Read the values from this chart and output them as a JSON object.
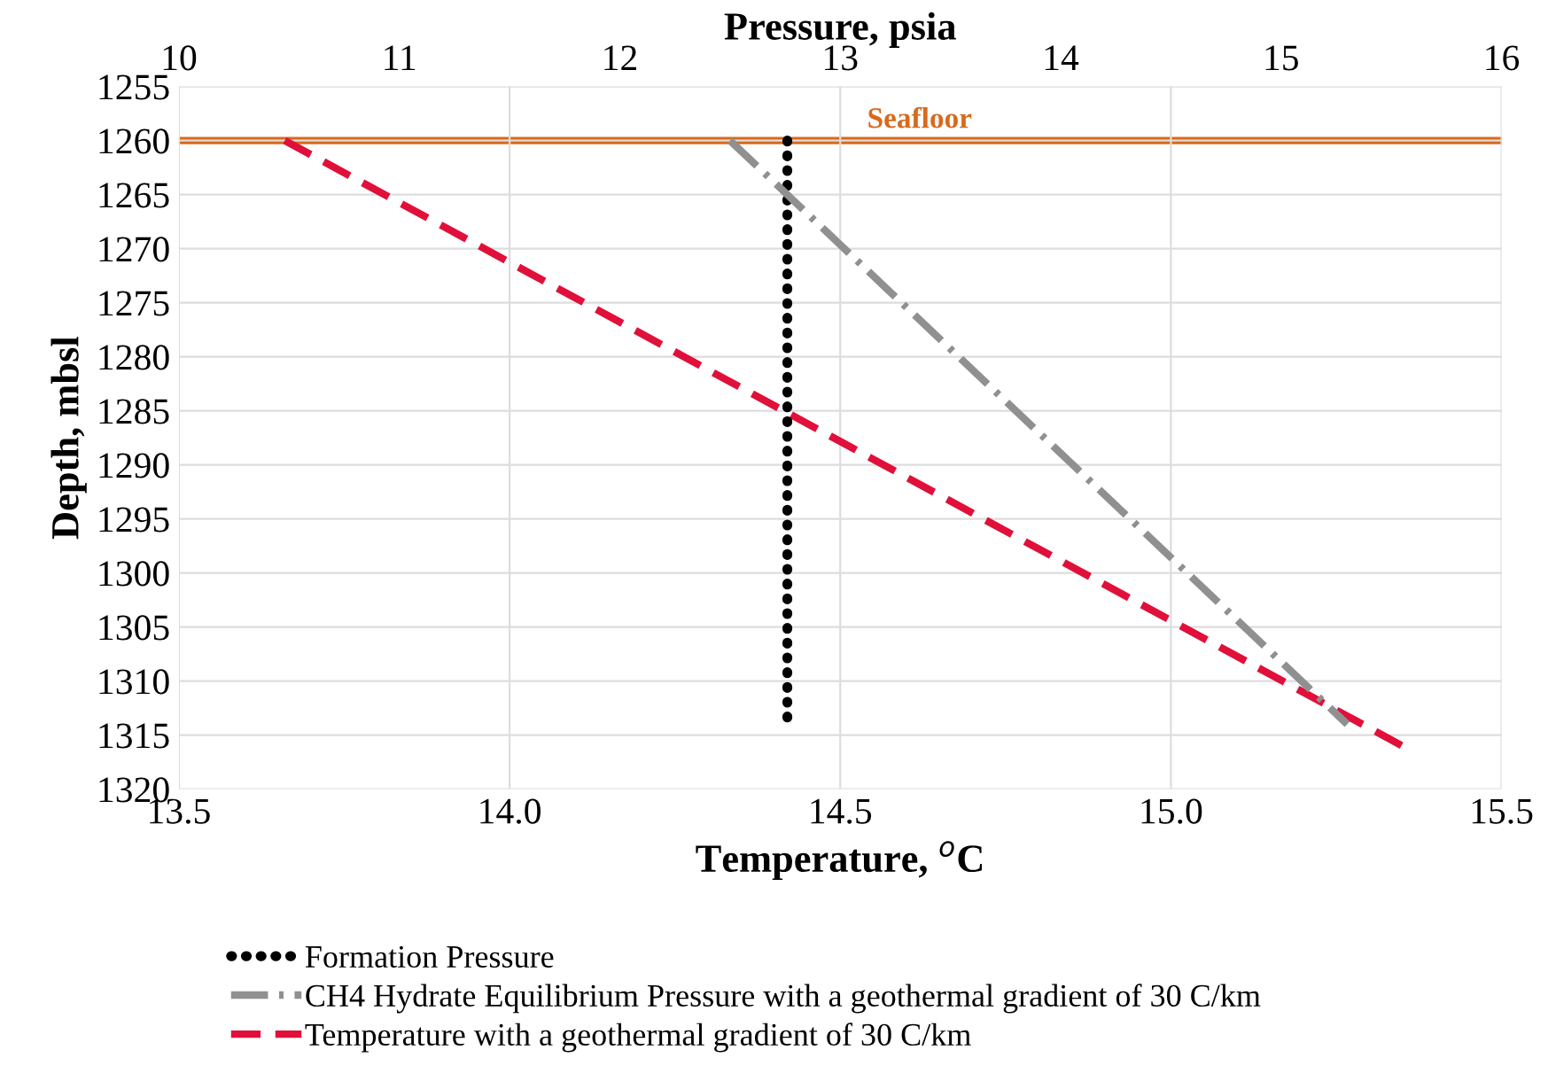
{
  "chart_data": {
    "type": "line",
    "xlabel": "Temperature, $^{o}$C",
    "x2label": "Pressure, psia",
    "ylabel": "Depth, mbsl",
    "xlim": [
      13.5,
      15.5
    ],
    "xticks": [
      {
        "value": 13.5,
        "label": "13.5"
      },
      {
        "value": 14.0,
        "label": "14.0"
      },
      {
        "value": 14.5,
        "label": "14.5"
      },
      {
        "value": 15.0,
        "label": "15.0"
      },
      {
        "value": 15.5,
        "label": "15.5"
      }
    ],
    "x2lim": [
      10,
      16
    ],
    "x2ticks": [
      10,
      11,
      12,
      13,
      14,
      15,
      16
    ],
    "ylim": [
      1320,
      1255
    ],
    "yticks": [
      1255,
      1260,
      1265,
      1270,
      1275,
      1280,
      1285,
      1290,
      1295,
      1300,
      1305,
      1310,
      1315,
      1320
    ],
    "grid": true,
    "legend": "bottom",
    "marker": "none",
    "series": [
      {
        "name": "Formation Pressure",
        "color": "#000000",
        "axis": "x2",
        "line_style": "dotted",
        "x": [
          12.76,
          12.76
        ],
        "values": [
          1260,
          1314
        ]
      },
      {
        "name": "CH4 Hydrate Equilibrium Pressure with a geothermal gradient of 30 C/km",
        "color": "#909090",
        "axis": "x2",
        "line_style": "dashdot",
        "x": [
          12.5,
          15.3
        ],
        "values": [
          1260,
          1314
        ]
      },
      {
        "name": "Temperature with a geothermal gradient of 30 C/km",
        "color": "#e0103a",
        "line_style": "dashed",
        "x": [
          13.66,
          15.35
        ],
        "values": [
          1260,
          1316
        ]
      }
    ],
    "ref_lines": [
      {
        "axis": "y",
        "value": 1260,
        "label": "Seafloor",
        "color": "#d86a1c"
      }
    ]
  }
}
